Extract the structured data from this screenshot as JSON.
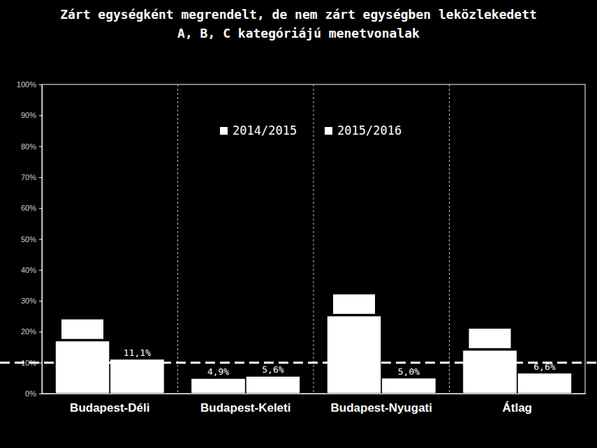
{
  "chart_data": {
    "type": "bar",
    "title": "Zárt egységként megrendelt, de nem zárt egységben leközlekedett\nA, B, C kategóriájú menetvonalak",
    "categories": [
      "Budapest-Déli",
      "Budapest-Keleti",
      "Budapest-Nyugati",
      "Átlag"
    ],
    "series": [
      {
        "name": "2014/2015",
        "color": "#ffffff",
        "values": [
          17,
          4.9,
          25.1,
          14
        ],
        "value_labels": [
          null,
          "4,9%",
          null,
          null
        ]
      },
      {
        "name": "2015/2016",
        "color": "#ffffff",
        "values": [
          11.1,
          5.6,
          5.0,
          6.6
        ],
        "value_labels": [
          "11,1%",
          "5,6%",
          "5,0%",
          "6,6%"
        ]
      }
    ],
    "threshold": 10,
    "ylim": [
      0,
      100
    ],
    "yticks": [
      {
        "value": 0,
        "label": "0%"
      },
      {
        "value": 10,
        "label": "10%"
      },
      {
        "value": 20,
        "label": "20%"
      },
      {
        "value": 30,
        "label": "30%"
      },
      {
        "value": 40,
        "label": "40%"
      },
      {
        "value": 50,
        "label": "50%"
      },
      {
        "value": 60,
        "label": "60%"
      },
      {
        "value": 70,
        "label": "70%"
      },
      {
        "value": 80,
        "label": "80%"
      },
      {
        "value": 90,
        "label": "90%"
      },
      {
        "value": 100,
        "label": "100%"
      }
    ],
    "grid": true,
    "legend": "top",
    "data_labels": true
  }
}
